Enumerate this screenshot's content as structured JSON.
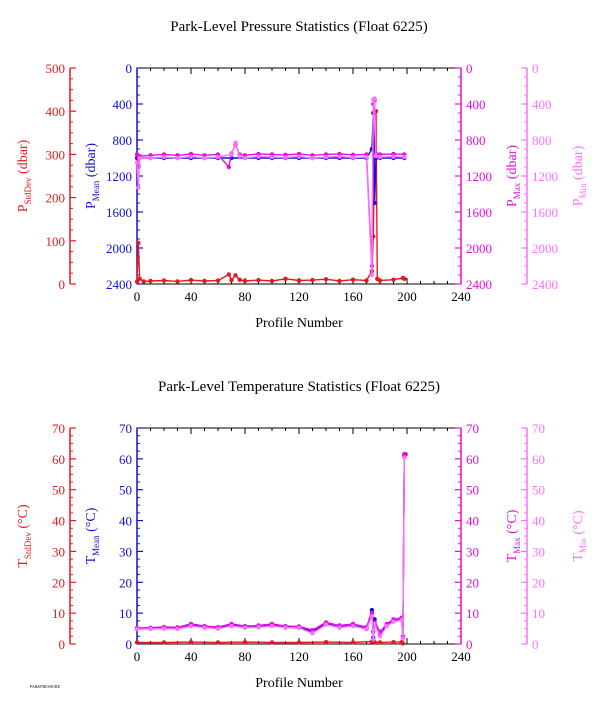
{
  "chart_data": [
    {
      "type": "line",
      "title": "Park-Level Pressure Statistics (Float 6225)",
      "xlabel": "Profile Number",
      "x_ticks": [
        "0",
        "40",
        "80",
        "120",
        "160",
        "200",
        "240"
      ],
      "xlim": [
        0,
        240
      ],
      "axes": [
        {
          "label_main": "P",
          "label_sub": "StdDev",
          "label_unit": "(dbar)",
          "color": "#e8191c",
          "ticks": [
            "500",
            "400",
            "300",
            "200",
            "100",
            "0"
          ],
          "lim": [
            0,
            500
          ],
          "inverted": false
        },
        {
          "label_main": "P",
          "label_sub": "Mean",
          "label_unit": "(dbar)",
          "color": "#1111cc",
          "ticks": [
            "0",
            "400",
            "800",
            "1200",
            "1600",
            "2000",
            "2400"
          ],
          "lim": [
            0,
            2400
          ],
          "inverted": true
        },
        {
          "label_main": "P",
          "label_sub": "Max",
          "label_unit": "(dbar)",
          "color": "#e010e0",
          "ticks": [
            "0",
            "400",
            "800",
            "1200",
            "1600",
            "2000",
            "2400"
          ],
          "lim": [
            0,
            2400
          ],
          "inverted": true
        },
        {
          "label_main": "P",
          "label_sub": "Min",
          "label_unit": "(dbar)",
          "color": "#ff70ff",
          "ticks": [
            "0",
            "400",
            "800",
            "1200",
            "1600",
            "2000",
            "2400"
          ],
          "lim": [
            0,
            2400
          ],
          "inverted": true
        }
      ],
      "series": [
        {
          "axis": 0,
          "color": "#e8191c",
          "points": [
            [
              0,
              5
            ],
            [
              1,
              95
            ],
            [
              2,
              12
            ],
            [
              5,
              6
            ],
            [
              10,
              7
            ],
            [
              20,
              8
            ],
            [
              30,
              6
            ],
            [
              40,
              9
            ],
            [
              50,
              7
            ],
            [
              60,
              8
            ],
            [
              68,
              22
            ],
            [
              70,
              9
            ],
            [
              73,
              20
            ],
            [
              76,
              10
            ],
            [
              80,
              7
            ],
            [
              90,
              9
            ],
            [
              100,
              7
            ],
            [
              110,
              12
            ],
            [
              120,
              8
            ],
            [
              130,
              9
            ],
            [
              140,
              11
            ],
            [
              150,
              7
            ],
            [
              160,
              10
            ],
            [
              170,
              8
            ],
            [
              174,
              30
            ],
            [
              175,
              110
            ],
            [
              176,
              320
            ],
            [
              177,
              400
            ],
            [
              178,
              12
            ],
            [
              180,
              8
            ],
            [
              190,
              10
            ],
            [
              197,
              14
            ],
            [
              198,
              12
            ]
          ]
        },
        {
          "axis": 1,
          "color": "#1111cc",
          "points": [
            [
              0,
              1000
            ],
            [
              1,
              1080
            ],
            [
              2,
              1000
            ],
            [
              10,
              1000
            ],
            [
              20,
              1000
            ],
            [
              30,
              1000
            ],
            [
              40,
              1000
            ],
            [
              50,
              1000
            ],
            [
              60,
              1000
            ],
            [
              70,
              1000
            ],
            [
              80,
              1000
            ],
            [
              90,
              1000
            ],
            [
              100,
              1000
            ],
            [
              110,
              1000
            ],
            [
              120,
              1000
            ],
            [
              130,
              1000
            ],
            [
              140,
              1000
            ],
            [
              150,
              1000
            ],
            [
              160,
              1000
            ],
            [
              170,
              1000
            ],
            [
              174,
              900
            ],
            [
              175,
              500
            ],
            [
              176,
              1500
            ],
            [
              177,
              1000
            ],
            [
              180,
              1000
            ],
            [
              190,
              1000
            ],
            [
              198,
              1000
            ]
          ]
        },
        {
          "axis": 2,
          "color": "#e010e0",
          "points": [
            [
              0,
              960
            ],
            [
              1,
              1100
            ],
            [
              2,
              980
            ],
            [
              10,
              970
            ],
            [
              20,
              960
            ],
            [
              30,
              970
            ],
            [
              40,
              955
            ],
            [
              50,
              970
            ],
            [
              60,
              960
            ],
            [
              68,
              1100
            ],
            [
              70,
              950
            ],
            [
              73,
              850
            ],
            [
              76,
              960
            ],
            [
              80,
              970
            ],
            [
              90,
              955
            ],
            [
              100,
              960
            ],
            [
              110,
              965
            ],
            [
              120,
              955
            ],
            [
              130,
              970
            ],
            [
              140,
              960
            ],
            [
              150,
              955
            ],
            [
              160,
              965
            ],
            [
              170,
              960
            ],
            [
              174,
              2200
            ],
            [
              175,
              400
            ],
            [
              176,
              360
            ],
            [
              177,
              950
            ],
            [
              180,
              960
            ],
            [
              190,
              955
            ],
            [
              198,
              960
            ]
          ]
        },
        {
          "axis": 3,
          "color": "#ff70ff",
          "points": [
            [
              0,
              1050
            ],
            [
              1,
              1330
            ],
            [
              2,
              1000
            ],
            [
              10,
              1000
            ],
            [
              20,
              990
            ],
            [
              30,
              1000
            ],
            [
              40,
              985
            ],
            [
              50,
              1000
            ],
            [
              60,
              990
            ],
            [
              70,
              960
            ],
            [
              73,
              830
            ],
            [
              76,
              980
            ],
            [
              80,
              1000
            ],
            [
              90,
              985
            ],
            [
              100,
              990
            ],
            [
              110,
              995
            ],
            [
              120,
              985
            ],
            [
              130,
              1000
            ],
            [
              140,
              990
            ],
            [
              150,
              985
            ],
            [
              160,
              995
            ],
            [
              170,
              990
            ],
            [
              174,
              2300
            ],
            [
              175,
              350
            ],
            [
              176,
              340
            ],
            [
              177,
              980
            ],
            [
              180,
              990
            ],
            [
              190,
              985
            ],
            [
              198,
              990
            ]
          ]
        }
      ]
    },
    {
      "type": "line",
      "title": "Park-Level Temperature Statistics (Float 6225)",
      "xlabel": "Profile Number",
      "x_ticks": [
        "0",
        "40",
        "80",
        "120",
        "160",
        "200",
        "240"
      ],
      "xlim": [
        0,
        240
      ],
      "axes": [
        {
          "label_main": "T",
          "label_sub": "StdDev",
          "label_unit": "(°C)",
          "color": "#e8191c",
          "ticks": [
            "70",
            "60",
            "50",
            "40",
            "30",
            "20",
            "10",
            "0"
          ],
          "lim": [
            0,
            70
          ],
          "inverted": false
        },
        {
          "label_main": "T",
          "label_sub": "Mean",
          "label_unit": "(°C)",
          "color": "#1111cc",
          "ticks": [
            "70",
            "60",
            "50",
            "40",
            "30",
            "20",
            "10",
            "0"
          ],
          "lim": [
            0,
            70
          ],
          "inverted": false
        },
        {
          "label_main": "T",
          "label_sub": "Max",
          "label_unit": "(°C)",
          "color": "#e010e0",
          "ticks": [
            "70",
            "60",
            "50",
            "40",
            "30",
            "20",
            "10",
            "0"
          ],
          "lim": [
            0,
            70
          ],
          "inverted": false
        },
        {
          "label_main": "T",
          "label_sub": "Min",
          "label_unit": "(°C)",
          "color": "#ff70ff",
          "ticks": [
            "70",
            "60",
            "50",
            "40",
            "30",
            "20",
            "10",
            "0"
          ],
          "lim": [
            0,
            70
          ],
          "inverted": false
        }
      ],
      "series": [
        {
          "axis": 0,
          "color": "#e8191c",
          "points": [
            [
              0,
              0.5
            ],
            [
              20,
              0.5
            ],
            [
              40,
              0.6
            ],
            [
              60,
              0.5
            ],
            [
              80,
              0.6
            ],
            [
              100,
              0.5
            ],
            [
              120,
              0.5
            ],
            [
              140,
              0.6
            ],
            [
              160,
              0.5
            ],
            [
              174,
              0.8
            ],
            [
              175,
              1.5
            ],
            [
              176,
              0.6
            ],
            [
              180,
              0.5
            ],
            [
              190,
              0.6
            ],
            [
              196,
              0.6
            ],
            [
              197,
              0.2
            ],
            [
              198,
              61.5
            ],
            [
              199,
              61.5
            ]
          ]
        },
        {
          "axis": 1,
          "color": "#1111cc",
          "points": [
            [
              0,
              5
            ],
            [
              10,
              5
            ],
            [
              20,
              5.2
            ],
            [
              30,
              5
            ],
            [
              40,
              6
            ],
            [
              50,
              5.5
            ],
            [
              60,
              5.2
            ],
            [
              70,
              6
            ],
            [
              80,
              5.5
            ],
            [
              90,
              5.6
            ],
            [
              100,
              6
            ],
            [
              110,
              5.5
            ],
            [
              120,
              5.4
            ],
            [
              130,
              4
            ],
            [
              140,
              6.5
            ],
            [
              150,
              5.5
            ],
            [
              160,
              6
            ],
            [
              170,
              5
            ],
            [
              174,
              11
            ],
            [
              175,
              2
            ],
            [
              176,
              8
            ],
            [
              180,
              3
            ],
            [
              185,
              6
            ],
            [
              190,
              7.5
            ],
            [
              196,
              8
            ],
            [
              197,
              2
            ],
            [
              198,
              61
            ]
          ]
        },
        {
          "axis": 2,
          "color": "#e010e0",
          "points": [
            [
              0,
              5.2
            ],
            [
              10,
              5.3
            ],
            [
              20,
              5.5
            ],
            [
              30,
              5.4
            ],
            [
              40,
              6.5
            ],
            [
              50,
              5.8
            ],
            [
              60,
              5.5
            ],
            [
              70,
              6.5
            ],
            [
              80,
              5.8
            ],
            [
              90,
              6
            ],
            [
              100,
              6.5
            ],
            [
              110,
              5.8
            ],
            [
              120,
              5.7
            ],
            [
              130,
              4.5
            ],
            [
              140,
              7
            ],
            [
              150,
              6
            ],
            [
              160,
              6.5
            ],
            [
              170,
              5.5
            ],
            [
              174,
              10
            ],
            [
              175,
              4
            ],
            [
              176,
              7
            ],
            [
              180,
              4
            ],
            [
              185,
              6.5
            ],
            [
              190,
              8
            ],
            [
              196,
              8.5
            ],
            [
              197,
              2.5
            ],
            [
              198,
              61.5
            ]
          ]
        },
        {
          "axis": 3,
          "color": "#ff70ff",
          "points": [
            [
              0,
              4.8
            ],
            [
              10,
              4.9
            ],
            [
              20,
              5
            ],
            [
              30,
              4.9
            ],
            [
              40,
              5.8
            ],
            [
              50,
              5.3
            ],
            [
              60,
              5
            ],
            [
              70,
              5.8
            ],
            [
              80,
              5.3
            ],
            [
              90,
              5.4
            ],
            [
              100,
              5.8
            ],
            [
              110,
              5.3
            ],
            [
              120,
              5.2
            ],
            [
              130,
              3.5
            ],
            [
              140,
              6.3
            ],
            [
              150,
              5.3
            ],
            [
              160,
              5.8
            ],
            [
              170,
              4.8
            ],
            [
              174,
              9
            ],
            [
              175,
              1.5
            ],
            [
              176,
              6.5
            ],
            [
              180,
              2.5
            ],
            [
              185,
              5.8
            ],
            [
              190,
              7.2
            ],
            [
              196,
              7.8
            ],
            [
              197,
              1.8
            ],
            [
              198,
              60.5
            ]
          ]
        }
      ]
    }
  ],
  "footer_text": "PARKPRESSURE"
}
